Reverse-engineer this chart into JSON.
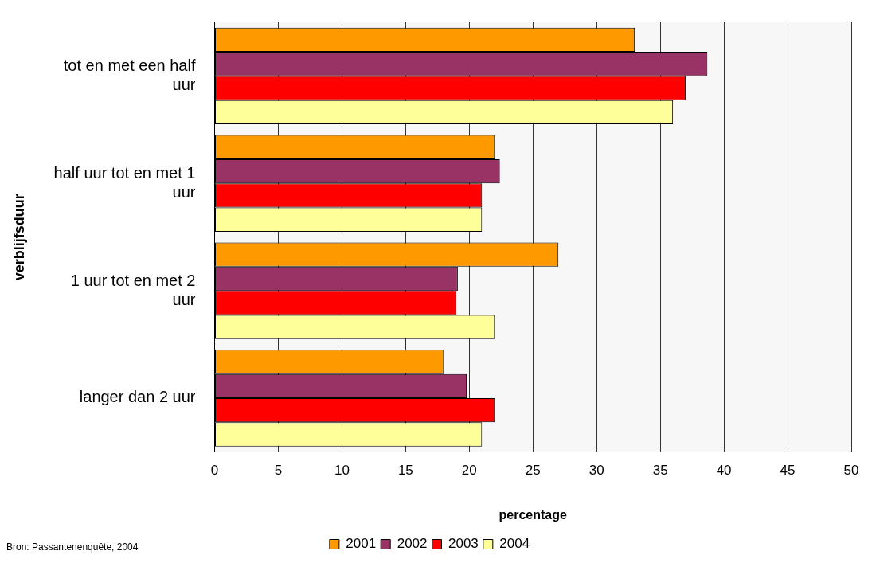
{
  "chart_data": {
    "type": "bar",
    "orientation": "horizontal",
    "xlabel": "percentage",
    "ylabel": "verblijfsduur",
    "categories": [
      "tot en met een half uur",
      "half uur tot en met 1 uur",
      "1 uur tot en met 2 uur",
      "langer dan 2 uur"
    ],
    "series": [
      {
        "name": "2001",
        "color": "#ff9900",
        "values": [
          33,
          22,
          27,
          18
        ]
      },
      {
        "name": "2002",
        "color": "#993366",
        "values": [
          38.7,
          22.4,
          19.1,
          19.8
        ]
      },
      {
        "name": "2003",
        "color": "#ff0000",
        "values": [
          37,
          21,
          19,
          22
        ]
      },
      {
        "name": "2004",
        "color": "#ffff99",
        "values": [
          36,
          21,
          22,
          21
        ]
      }
    ],
    "xlim": [
      0,
      50
    ],
    "xticks": [
      0,
      5,
      10,
      15,
      20,
      25,
      30,
      35,
      40,
      45,
      50
    ],
    "grid": "x",
    "legend": "bottom",
    "annotations": [
      "Bron: Passantenenquête, 2004"
    ]
  }
}
